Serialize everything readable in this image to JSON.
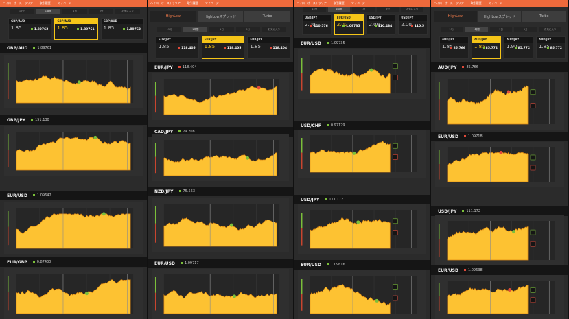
{
  "colors": {
    "accent": "#ee6a3c",
    "area": "#fdc232",
    "highlight": "#f5c518",
    "up": "#7bbf3a",
    "down": "#e04a3a"
  },
  "topbar_items": [
    "ハイローオーストラリア",
    "取引履歴",
    "マイページ"
  ],
  "big_tabs": [
    "HighLow",
    "HighLowスプレッド",
    "Turbo"
  ],
  "small_tabs": [
    "15分",
    "1時間",
    "1日",
    "5分",
    "お気に入り"
  ],
  "columns": [
    {
      "cards": [
        {
          "pair": "GBP/AUD",
          "payout": "1.85",
          "price": "1.89762"
        },
        {
          "pair": "GBP/AUD",
          "payout": "1.85",
          "price": "1.89761"
        },
        {
          "pair": "GBP/AUD",
          "payout": "1.85",
          "price": "1.89762"
        }
      ],
      "panels": [
        {
          "pair": "GBP/AUD",
          "price": "1.89761",
          "dir": "up"
        },
        {
          "pair": "GBP/JPY",
          "price": "151.130",
          "dir": "up"
        },
        {
          "pair": "EUR/USD",
          "price": "1.09642",
          "dir": "up"
        },
        {
          "pair": "EUR/GBP",
          "price": "0.87430",
          "dir": "up"
        }
      ]
    },
    {
      "cards": [
        {
          "pair": "EUR/JPY",
          "payout": "1.85",
          "price": "118.405",
          "dir": "down"
        },
        {
          "pair": "EUR/JPY",
          "payout": "1.85",
          "price": "118.405",
          "dir": "down"
        },
        {
          "pair": "EUR/JPY",
          "payout": "1.85",
          "price": "118.404",
          "dir": "down"
        }
      ],
      "panels": [
        {
          "pair": "EUR/JPY",
          "price": "118.404",
          "dir": "down"
        },
        {
          "pair": "CAD/JPY",
          "price": "79.208",
          "dir": "up"
        },
        {
          "pair": "NZD/JPY",
          "price": "75.563",
          "dir": "up"
        },
        {
          "pair": "EUR/USD",
          "price": "1.09717",
          "dir": "up"
        }
      ]
    },
    {
      "cards": [
        {
          "pair": "USD/JPY",
          "payout": "2.00",
          "price": "110.576",
          "dir": "down"
        },
        {
          "pair": "EUR/USD",
          "payout": "2.00",
          "price": "1.09735"
        },
        {
          "pair": "USD/JPY",
          "payout": "2.00",
          "price": "110.434"
        },
        {
          "pair": "USD/JPY",
          "payout": "2.00",
          "price": "110.5",
          "dir": "down"
        }
      ],
      "panels": [
        {
          "pair": "EUR/USD",
          "price": "1.09735",
          "dir": "up"
        },
        {
          "pair": "USD/CHF",
          "price": "0.97179",
          "dir": "up"
        },
        {
          "pair": "USD/JPY",
          "price": "111.172",
          "dir": "up"
        },
        {
          "pair": "EUR/USD",
          "price": "1.09616",
          "dir": "up"
        }
      ]
    },
    {
      "cards": [
        {
          "pair": "AUD/JPY",
          "payout": "1.85",
          "price": "85.766",
          "dir": "down"
        },
        {
          "pair": "AUD/JPY",
          "payout": "1.85",
          "price": "85.772"
        },
        {
          "pair": "AUD/JPY",
          "payout": "1.90",
          "price": "85.772"
        },
        {
          "pair": "AUD/JPY",
          "payout": "1.85",
          "price": "85.772"
        }
      ],
      "panels": [
        {
          "pair": "AUD/JPY",
          "price": "85.766",
          "dir": "down"
        },
        {
          "pair": "EUR/USD",
          "price": "1.09718",
          "dir": "down"
        },
        {
          "pair": "USD/JPY",
          "price": "111.172",
          "dir": "up"
        },
        {
          "pair": "EUR/USD",
          "price": "1.09638",
          "dir": "down"
        }
      ]
    }
  ]
}
